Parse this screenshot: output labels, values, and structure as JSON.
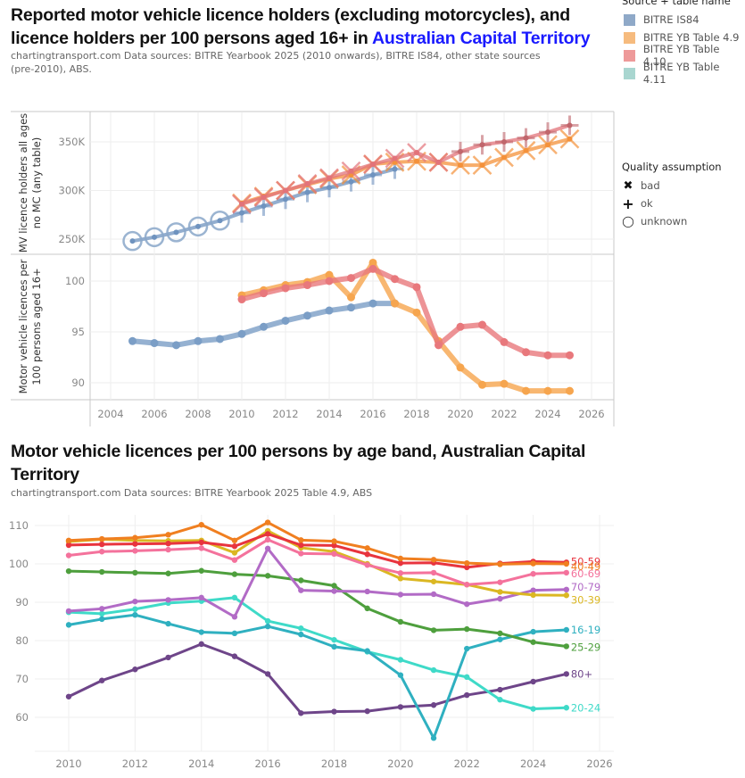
{
  "chart1": {
    "title_part1": "Reported motor vehicle licence holders (excluding motorcycles), and",
    "title_part2": "licence holders per 100 persons aged 16+ in ",
    "title_highlight": "Australian Capital Territory",
    "subtitle_line1": "chartingtransport.com  Data sources: BITRE Yearbook 2025 (2010 onwards), BITRE IS84, other state sources",
    "subtitle_line2": "(pre-2010), ABS.",
    "legend_source": {
      "title": "Source + table name",
      "items": [
        {
          "label": "BITRE IS84",
          "color": "#8fa9c8"
        },
        {
          "label": "BITRE YB Table 4.9",
          "color": "#f6bb7e"
        },
        {
          "label": "BITRE YB Table 4.10",
          "color": "#ee9a9a"
        },
        {
          "label": "BITRE YB Table 4.11",
          "color": "#a9d6d0"
        }
      ]
    },
    "legend_quality": {
      "title": "Quality assumption",
      "items": [
        {
          "label": "bad",
          "symbol": "x-icon"
        },
        {
          "label": "ok",
          "symbol": "plus-icon"
        },
        {
          "label": "unknown",
          "symbol": "circle-icon"
        }
      ]
    }
  },
  "chart_data": [
    {
      "type": "line",
      "title": "Reported motor vehicle licence holders (excluding motorcycles)",
      "xlabel": "",
      "ylabel": "MV licence holders all ages no MC (any table)",
      "xlim": [
        2003,
        2027
      ],
      "ylim": [
        240000,
        375000
      ],
      "xticks": [
        "2004",
        "2006",
        "2008",
        "2010",
        "2012",
        "2014",
        "2016",
        "2018",
        "2020",
        "2022",
        "2024",
        "2026"
      ],
      "yticks": [
        {
          "value": 250000,
          "label": "250K"
        },
        {
          "value": 300000,
          "label": "300K"
        },
        {
          "value": 350000,
          "label": "350K"
        }
      ],
      "grid": true,
      "series": [
        {
          "name": "BITRE IS84",
          "color": "#5b84b1",
          "marker_quality": [
            "unknown",
            "unknown",
            "unknown",
            "unknown",
            "unknown",
            "ok",
            "ok",
            "ok",
            "ok",
            "ok",
            "ok",
            "ok",
            "ok"
          ],
          "x": [
            2005,
            2006,
            2007,
            2008,
            2009,
            2010,
            2011,
            2012,
            2013,
            2014,
            2015,
            2016,
            2017
          ],
          "values": [
            248000,
            252000,
            257000,
            263000,
            269000,
            277000,
            284000,
            291000,
            298000,
            303000,
            309000,
            316000,
            322000
          ]
        },
        {
          "name": "BITRE YB Table 4.9",
          "color": "#f28e2b",
          "marker_quality": "bad",
          "x": [
            2010,
            2011,
            2012,
            2013,
            2014,
            2015,
            2016,
            2017,
            2018,
            2019,
            2020,
            2021,
            2022,
            2023,
            2024,
            2025
          ],
          "values": [
            287000,
            294000,
            300000,
            306000,
            312000,
            316000,
            327000,
            329000,
            330000,
            329000,
            326000,
            326000,
            334000,
            341000,
            347000,
            353000
          ]
        },
        {
          "name": "BITRE YB Table 4.10",
          "color": "#e15759",
          "marker_quality": [
            "bad",
            "bad",
            "bad",
            "bad",
            "bad",
            "bad",
            "bad",
            "bad",
            "bad",
            "bad",
            "ok",
            "ok",
            "ok",
            "ok",
            "ok",
            "ok"
          ],
          "x": [
            2010,
            2011,
            2012,
            2013,
            2014,
            2015,
            2016,
            2017,
            2018,
            2019,
            2020,
            2021,
            2022,
            2023,
            2024,
            2025
          ],
          "values": [
            286000,
            293000,
            300000,
            307000,
            313000,
            320000,
            327000,
            333000,
            339000,
            329000,
            340000,
            347000,
            350000,
            354000,
            360000,
            367000
          ]
        }
      ]
    },
    {
      "type": "line",
      "title": "Licence holders per 100 persons aged 16+",
      "xlabel": "",
      "ylabel": "Motor vehicle licences per 100 persons aged 16+",
      "xlim": [
        2003,
        2027
      ],
      "ylim": [
        88.4,
        103.3
      ],
      "xticks": [
        "2004",
        "2006",
        "2008",
        "2010",
        "2012",
        "2014",
        "2016",
        "2018",
        "2020",
        "2022",
        "2024",
        "2026"
      ],
      "yticks": [
        {
          "value": 90,
          "label": "90"
        },
        {
          "value": 95,
          "label": "95"
        },
        {
          "value": 100,
          "label": "100"
        }
      ],
      "grid": true,
      "series": [
        {
          "name": "BITRE IS84",
          "color": "#7b9ec6",
          "x": [
            2005,
            2006,
            2007,
            2008,
            2009,
            2010,
            2011,
            2012,
            2013,
            2014,
            2015,
            2016,
            2017
          ],
          "values": [
            94.1,
            93.9,
            93.7,
            94.1,
            94.3,
            94.8,
            95.5,
            96.1,
            96.6,
            97.1,
            97.4,
            97.8,
            97.8
          ]
        },
        {
          "name": "BITRE YB Table 4.9",
          "color": "#f6a54e",
          "x": [
            2010,
            2011,
            2012,
            2013,
            2014,
            2015,
            2016,
            2017,
            2018,
            2019,
            2020,
            2021,
            2022,
            2023,
            2024,
            2025
          ],
          "values": [
            98.6,
            99.1,
            99.6,
            99.9,
            100.6,
            98.4,
            101.8,
            97.8,
            96.9,
            94.1,
            91.5,
            89.8,
            89.9,
            89.2,
            89.2,
            89.2
          ]
        },
        {
          "name": "BITRE YB Table 4.10",
          "color": "#e8787c",
          "x": [
            2010,
            2011,
            2012,
            2013,
            2014,
            2015,
            2016,
            2017,
            2018,
            2019,
            2020,
            2021,
            2022,
            2023,
            2024,
            2025
          ],
          "values": [
            98.2,
            98.8,
            99.3,
            99.6,
            100.0,
            100.3,
            101.2,
            100.2,
            99.4,
            93.7,
            95.5,
            95.7,
            94.0,
            93.0,
            92.7,
            92.7
          ]
        }
      ]
    },
    {
      "type": "line",
      "title": "Motor vehicle licences per 100 persons by age band, Australian Capital Territory",
      "subtitle": "chartingtransport.com  Data sources: BITRE Yearbook 2025 Table 4.9, ABS",
      "xlabel": "",
      "ylabel": "",
      "xlim": [
        2009,
        2026
      ],
      "ylim": [
        51,
        113
      ],
      "xticks": [
        "2010",
        "2012",
        "2014",
        "2016",
        "2018",
        "2020",
        "2022",
        "2024",
        "2026"
      ],
      "yticks": [
        {
          "value": 60,
          "label": "60"
        },
        {
          "value": 70,
          "label": "70"
        },
        {
          "value": 80,
          "label": "80"
        },
        {
          "value": 90,
          "label": "90"
        },
        {
          "value": 100,
          "label": "100"
        },
        {
          "value": 110,
          "label": "110"
        }
      ],
      "grid": true,
      "x": [
        2010,
        2011,
        2012,
        2013,
        2014,
        2015,
        2016,
        2017,
        2018,
        2019,
        2020,
        2021,
        2022,
        2023,
        2024,
        2025
      ],
      "series": [
        {
          "name": "40-49",
          "label": "40-49",
          "color": "#f07f20",
          "values": [
            106.1,
            106.5,
            106.8,
            107.6,
            110.2,
            106.1,
            110.8,
            106.2,
            105.9,
            104.1,
            101.4,
            101.1,
            100.2,
            99.9,
            100.1,
            100.0
          ]
        },
        {
          "name": "50-59",
          "label": "50-59",
          "color": "#e8343e",
          "values": [
            104.9,
            105.1,
            105.2,
            105.3,
            105.6,
            104.6,
            107.8,
            104.9,
            104.8,
            102.5,
            100.2,
            100.3,
            99.1,
            100.1,
            100.6,
            100.4
          ]
        },
        {
          "name": "60-69",
          "label": "60-69",
          "color": "#f4729c",
          "values": [
            102.2,
            103.2,
            103.4,
            103.7,
            104.1,
            101.0,
            106.3,
            102.7,
            102.6,
            99.7,
            97.6,
            97.7,
            94.6,
            95.2,
            97.4,
            97.7
          ]
        },
        {
          "name": "30-39",
          "label": "30-39",
          "color": "#dbb722",
          "values": [
            105.8,
            106.4,
            106.1,
            106.0,
            106.1,
            102.9,
            108.6,
            104.2,
            103.2,
            100.0,
            96.2,
            95.4,
            94.6,
            92.7,
            91.9,
            91.8
          ]
        },
        {
          "name": "70-79",
          "label": "70-79",
          "color": "#b26bc6",
          "values": [
            87.7,
            88.3,
            90.2,
            90.6,
            91.2,
            86.2,
            104.0,
            93.1,
            92.9,
            92.8,
            92.0,
            92.1,
            89.5,
            90.9,
            93.1,
            93.3
          ]
        },
        {
          "name": "25-29",
          "label": "25-29",
          "color": "#4e9f3d",
          "values": [
            98.1,
            97.9,
            97.7,
            97.5,
            98.2,
            97.3,
            96.9,
            95.7,
            94.3,
            88.4,
            84.9,
            82.7,
            83.0,
            81.9,
            79.6,
            78.5
          ]
        },
        {
          "name": "16-19",
          "label": "16-19",
          "color": "#2fb0c0",
          "values": [
            84.1,
            85.6,
            86.7,
            84.4,
            82.2,
            81.9,
            83.7,
            81.6,
            78.4,
            77.3,
            71.0,
            54.6,
            77.9,
            80.3,
            82.3,
            82.8
          ]
        },
        {
          "name": "20-24",
          "label": "20-24",
          "color": "#3fdac8",
          "values": [
            87.4,
            87.0,
            88.2,
            89.8,
            90.3,
            91.2,
            85.1,
            83.2,
            80.2,
            77.1,
            75.0,
            72.3,
            70.5,
            64.6,
            62.2,
            62.5
          ]
        },
        {
          "name": "80+",
          "label": "80+",
          "color": "#6e4589",
          "values": [
            65.4,
            69.6,
            72.5,
            75.6,
            79.1,
            75.9,
            71.3,
            61.1,
            61.5,
            61.6,
            62.7,
            63.2,
            65.8,
            67.2,
            69.3,
            71.3
          ]
        }
      ]
    }
  ]
}
